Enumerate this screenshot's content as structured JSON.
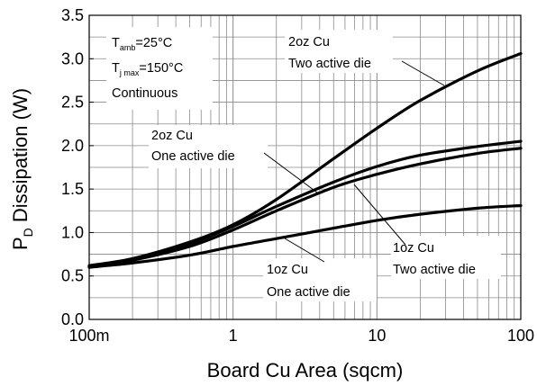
{
  "chart_data": {
    "type": "line",
    "xscale": "log",
    "xlim": [
      0.1,
      100
    ],
    "ylim": [
      0,
      3.5
    ],
    "grid": true,
    "xlabel": "Board Cu Area (sqcm)",
    "ylabel": {
      "main": "P",
      "sub": "D",
      "rest": " Dissipation (W)"
    },
    "x_ticks": [
      {
        "value": 0.1,
        "label": "100m"
      },
      {
        "value": 1,
        "label": "1"
      },
      {
        "value": 10,
        "label": "10"
      },
      {
        "value": 100,
        "label": "100"
      }
    ],
    "y_ticks": [
      {
        "value": 0,
        "label": "0.0"
      },
      {
        "value": 0.5,
        "label": "0.5"
      },
      {
        "value": 1,
        "label": "1.0"
      },
      {
        "value": 1.5,
        "label": "1.5"
      },
      {
        "value": 2,
        "label": "2.0"
      },
      {
        "value": 2.5,
        "label": "2.5"
      },
      {
        "value": 3,
        "label": "3.0"
      },
      {
        "value": 3.5,
        "label": "3.5"
      }
    ],
    "conditions": {
      "t_amb": {
        "main": "T",
        "sub": "amb",
        "value": "=25°C"
      },
      "t_jmax": {
        "main": "T",
        "sub": "j max",
        "value": "=150°C"
      },
      "mode": "Continuous"
    },
    "series": [
      {
        "label": [
          "2oz Cu",
          "Two active die"
        ],
        "x": [
          0.1,
          0.2,
          0.5,
          1,
          2,
          5,
          10,
          20,
          50,
          100
        ],
        "y": [
          0.62,
          0.7,
          0.89,
          1.09,
          1.38,
          1.85,
          2.2,
          2.52,
          2.86,
          3.06
        ]
      },
      {
        "label": [
          "2oz Cu",
          "One active die"
        ],
        "x": [
          0.1,
          0.2,
          0.5,
          1,
          2,
          5,
          10,
          20,
          50,
          100
        ],
        "y": [
          0.61,
          0.69,
          0.87,
          1.07,
          1.3,
          1.58,
          1.76,
          1.89,
          1.99,
          2.05
        ]
      },
      {
        "label": [
          "1oz Cu",
          "Two active die"
        ],
        "x": [
          0.1,
          0.2,
          0.5,
          1,
          2,
          5,
          10,
          20,
          50,
          100
        ],
        "y": [
          0.6,
          0.68,
          0.84,
          1.03,
          1.25,
          1.52,
          1.67,
          1.79,
          1.91,
          1.97
        ]
      },
      {
        "label": [
          "1oz Cu",
          "One active die"
        ],
        "x": [
          0.1,
          0.2,
          0.5,
          1,
          2,
          5,
          10,
          20,
          50,
          100
        ],
        "y": [
          0.6,
          0.65,
          0.74,
          0.84,
          0.93,
          1.05,
          1.14,
          1.21,
          1.28,
          1.31
        ]
      }
    ]
  }
}
